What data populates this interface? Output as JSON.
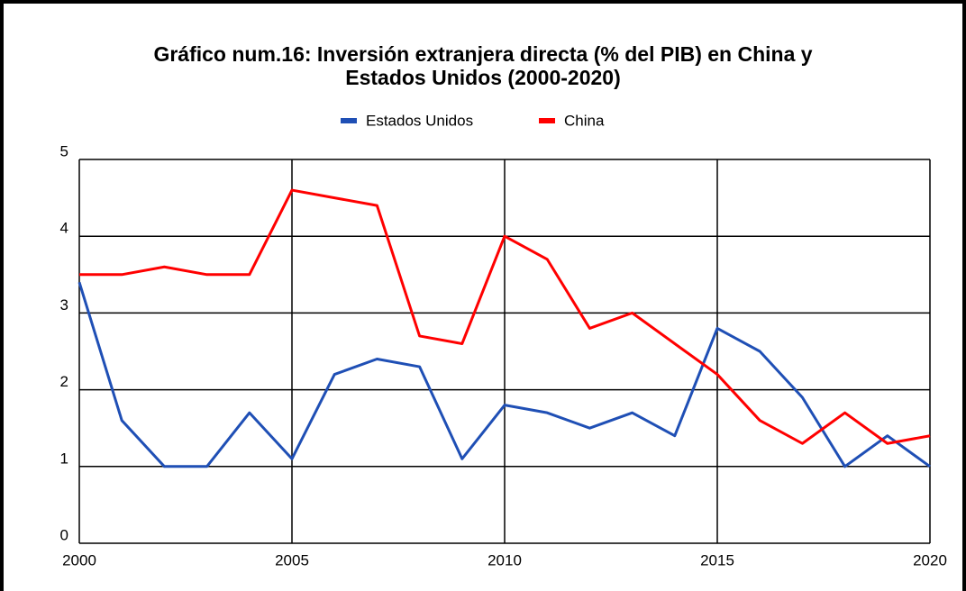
{
  "chart_data": {
    "type": "line",
    "title": [
      "Gráfico num.16: Inversión extranjera directa (% del PIB) en China y",
      "Estados Unidos (2000-2020)"
    ],
    "x": [
      2000,
      2001,
      2002,
      2003,
      2004,
      2005,
      2006,
      2007,
      2008,
      2009,
      2010,
      2011,
      2012,
      2013,
      2014,
      2015,
      2016,
      2017,
      2018,
      2019,
      2020
    ],
    "series": [
      {
        "name": "Estados Unidos",
        "color": "#1f4fb5",
        "values": [
          3.4,
          1.6,
          1.0,
          1.0,
          1.7,
          1.1,
          2.2,
          2.4,
          2.3,
          1.1,
          1.8,
          1.7,
          1.5,
          1.7,
          1.4,
          2.8,
          2.5,
          1.9,
          1.0,
          1.4,
          1.0
        ]
      },
      {
        "name": "China",
        "color": "#ff0000",
        "values": [
          3.5,
          3.5,
          3.6,
          3.5,
          3.5,
          4.6,
          4.5,
          4.4,
          2.7,
          2.6,
          4.0,
          3.7,
          2.8,
          3.0,
          2.6,
          2.2,
          1.6,
          1.3,
          1.7,
          1.3,
          1.4
        ]
      }
    ],
    "xlim": [
      2000,
      2020
    ],
    "xticks": [
      2000,
      2005,
      2010,
      2015,
      2020
    ],
    "ylim": [
      0,
      5
    ],
    "yticks": [
      0,
      1,
      2,
      3,
      4,
      5
    ],
    "grid": true,
    "legend": "top"
  }
}
